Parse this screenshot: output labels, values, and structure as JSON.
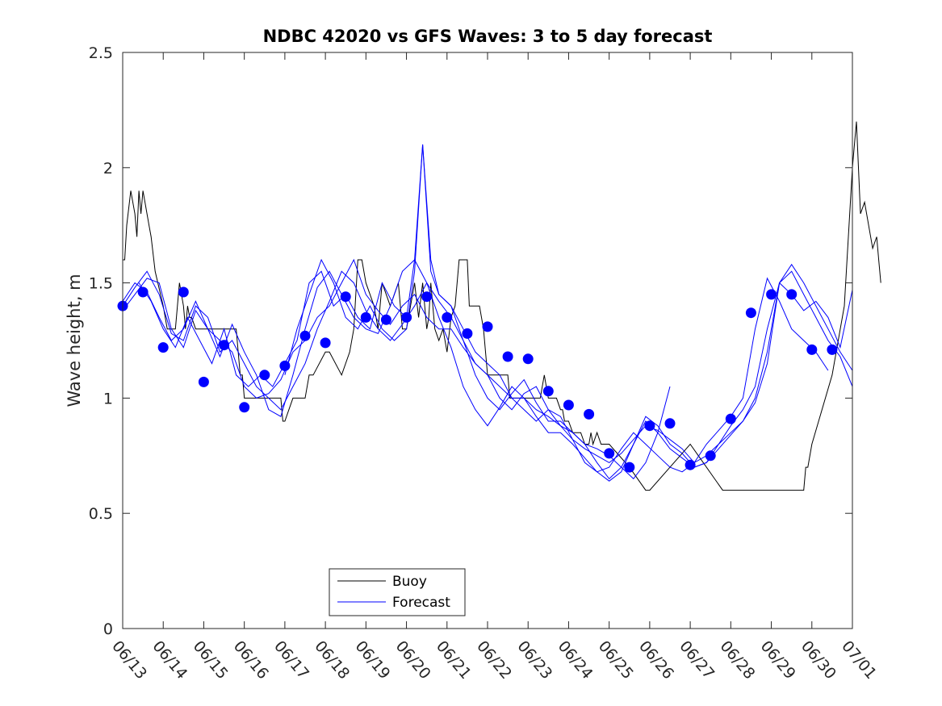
{
  "chart_data": {
    "type": "line",
    "title": "NDBC 42020 vs GFS Waves: 3 to 5 day forecast",
    "xlabel": "",
    "ylabel": "Wave height, m",
    "x_tick_labels": [
      "06/13",
      "06/14",
      "06/15",
      "06/16",
      "06/17",
      "06/18",
      "06/19",
      "06/20",
      "06/21",
      "06/22",
      "06/23",
      "06/24",
      "06/25",
      "06/26",
      "06/27",
      "06/28",
      "06/29",
      "06/30",
      "07/01"
    ],
    "xlim": [
      "06/13",
      "07/01"
    ],
    "ylim": [
      0,
      2.5
    ],
    "y_ticks": [
      0,
      0.5,
      1,
      1.5,
      2,
      2.5
    ],
    "y_tick_labels": [
      "0",
      "0.5",
      "1",
      "1.5",
      "2",
      "2.5"
    ],
    "grid": false,
    "legend": {
      "placement": "bottom-left",
      "entries": [
        "Buoy",
        "Forecast"
      ]
    },
    "colors": {
      "buoy": "#000000",
      "forecast": "#0000ff",
      "analysis_markers": "#0000ff"
    },
    "series": [
      {
        "name": "Buoy",
        "color": "#000000",
        "x": [
          0,
          0.05,
          0.1,
          0.2,
          0.3,
          0.35,
          0.4,
          0.45,
          0.5,
          0.55,
          0.6,
          0.65,
          0.7,
          0.8,
          1.0,
          1.1,
          1.3,
          1.4,
          1.5,
          1.55,
          1.6,
          1.65,
          1.7,
          1.8,
          1.9,
          2.0,
          2.5,
          2.8,
          2.9,
          2.95,
          3.0,
          3.3,
          3.5,
          3.9,
          3.95,
          4.0,
          4.2,
          4.5,
          4.6,
          4.7,
          5.0,
          5.1,
          5.4,
          5.6,
          5.7,
          5.8,
          5.9,
          6.0,
          6.1,
          6.2,
          6.3,
          6.4,
          6.6,
          6.8,
          6.85,
          6.9,
          7.0,
          7.1,
          7.2,
          7.3,
          7.4,
          7.5,
          7.55,
          7.6,
          7.7,
          7.8,
          7.9,
          8.0,
          8.1,
          8.2,
          8.3,
          8.5,
          8.55,
          8.6,
          8.8,
          8.9,
          9.0,
          9.5,
          9.55,
          9.9,
          10.0,
          10.2,
          10.3,
          10.4,
          10.5,
          10.6,
          10.7,
          10.8,
          10.85,
          10.9,
          11.0,
          11.1,
          11.2,
          11.3,
          11.4,
          11.5,
          11.55,
          11.6,
          11.7,
          11.8,
          11.85,
          12.0,
          12.5,
          12.9,
          12.95,
          13.0,
          13.5,
          14.0,
          14.2,
          14.8,
          15.8,
          16.3,
          16.8,
          16.85,
          16.9,
          17.0,
          17.5,
          17.8,
          17.9,
          18.0,
          18.05,
          18.1,
          18.2,
          18.3,
          18.4,
          18.5,
          18.6,
          18.65,
          18.7
        ],
        "y": [
          1.6,
          1.6,
          1.75,
          1.9,
          1.8,
          1.7,
          1.9,
          1.8,
          1.9,
          1.85,
          1.8,
          1.75,
          1.7,
          1.55,
          1.4,
          1.3,
          1.3,
          1.5,
          1.4,
          1.3,
          1.4,
          1.35,
          1.35,
          1.3,
          1.3,
          1.3,
          1.3,
          1.3,
          1.1,
          1.1,
          1.0,
          1.0,
          1.0,
          1.0,
          0.9,
          0.9,
          1.0,
          1.0,
          1.1,
          1.1,
          1.2,
          1.2,
          1.1,
          1.2,
          1.3,
          1.6,
          1.6,
          1.5,
          1.45,
          1.4,
          1.3,
          1.5,
          1.4,
          1.5,
          1.4,
          1.3,
          1.3,
          1.4,
          1.5,
          1.35,
          1.5,
          1.3,
          1.35,
          1.5,
          1.3,
          1.25,
          1.3,
          1.2,
          1.35,
          1.4,
          1.6,
          1.6,
          1.4,
          1.4,
          1.4,
          1.3,
          1.1,
          1.1,
          1.0,
          1.0,
          1.0,
          1.0,
          1.0,
          1.1,
          1.0,
          1.0,
          1.0,
          0.95,
          0.95,
          0.9,
          0.9,
          0.85,
          0.85,
          0.85,
          0.8,
          0.8,
          0.85,
          0.8,
          0.85,
          0.8,
          0.8,
          0.8,
          0.7,
          0.6,
          0.6,
          0.6,
          0.7,
          0.8,
          0.75,
          0.6,
          0.6,
          0.6,
          0.6,
          0.7,
          0.7,
          0.8,
          1.1,
          1.4,
          1.7,
          2.0,
          2.1,
          2.2,
          1.8,
          1.85,
          1.75,
          1.65,
          1.7,
          1.6,
          1.5
        ]
      },
      {
        "name": "",
        "color": "#0000ff",
        "x": [
          0,
          0.3,
          0.6,
          0.9,
          1.2,
          1.5,
          1.8,
          2.1,
          2.4,
          2.7,
          3.0,
          3.3,
          3.6,
          3.9,
          4.2,
          4.5,
          4.8,
          5.1,
          5.4,
          5.7,
          6.0,
          6.3,
          6.6,
          6.9,
          7.2,
          7.5,
          7.8,
          8.1,
          8.4,
          8.7,
          9.0,
          9.3,
          9.6,
          9.9,
          10.2,
          10.5,
          10.8,
          11.1,
          11.4,
          11.7,
          12.0,
          12.3,
          12.6,
          12.9,
          13.2,
          13.5,
          13.8,
          14.1,
          14.4,
          14.7,
          15.0,
          15.3,
          15.6,
          15.9,
          16.2,
          16.5,
          16.8,
          17.1,
          17.4,
          17.7,
          18.0
        ],
        "y": [
          1.38,
          1.45,
          1.52,
          1.5,
          1.3,
          1.22,
          1.38,
          1.3,
          1.25,
          1.2,
          1.05,
          1.0,
          1.02,
          1.08,
          1.2,
          1.25,
          1.35,
          1.4,
          1.5,
          1.6,
          1.45,
          1.38,
          1.32,
          1.4,
          1.45,
          1.35,
          1.3,
          1.3,
          1.22,
          1.15,
          1.1,
          1.05,
          1.0,
          1.0,
          0.95,
          0.92,
          0.88,
          0.82,
          0.78,
          0.75,
          0.72,
          0.76,
          0.82,
          0.88,
          0.86,
          0.82,
          0.78,
          0.72,
          0.75,
          0.8,
          0.85,
          0.9,
          1.0,
          1.2,
          1.5,
          1.58,
          1.5,
          1.4,
          1.3,
          1.2,
          1.12
        ]
      },
      {
        "name": "",
        "color": "#0000ff",
        "x": [
          0,
          0.3,
          0.6,
          0.9,
          1.2,
          1.5,
          1.8,
          2.1,
          2.4,
          2.7,
          3.0,
          3.3,
          3.6,
          3.9,
          4.2,
          4.5,
          4.8,
          5.1,
          5.4,
          5.7,
          6.0,
          6.3,
          6.6,
          6.9,
          7.2,
          7.5,
          7.8,
          8.1,
          8.4,
          8.7,
          9.0,
          9.3,
          9.6,
          9.9,
          10.2,
          10.5,
          10.8,
          11.1,
          11.4,
          11.7,
          12.0,
          12.3,
          12.6,
          12.9,
          13.2,
          13.5
        ],
        "y": [
          1.4,
          1.48,
          1.55,
          1.45,
          1.28,
          1.25,
          1.4,
          1.35,
          1.2,
          1.25,
          1.15,
          1.05,
          1.0,
          0.95,
          1.05,
          1.15,
          1.3,
          1.42,
          1.55,
          1.5,
          1.38,
          1.3,
          1.25,
          1.32,
          1.4,
          1.5,
          1.42,
          1.35,
          1.25,
          1.1,
          1.0,
          0.95,
          1.02,
          1.08,
          0.98,
          0.9,
          0.9,
          0.85,
          0.8,
          0.78,
          0.75,
          0.7,
          0.65,
          0.72,
          0.85,
          1.05
        ]
      },
      {
        "name": "",
        "color": "#0000ff",
        "x": [
          0,
          0.3,
          0.6,
          0.9,
          1.2,
          1.5,
          1.8,
          2.1,
          2.4,
          2.7,
          3.0,
          3.3,
          3.6,
          3.9,
          4.2,
          4.5,
          4.8,
          5.1,
          5.4,
          5.7,
          6.0,
          6.3,
          6.6,
          6.9,
          7.2,
          7.5,
          7.8,
          8.1,
          8.4,
          8.7,
          9.0,
          9.3,
          9.6,
          9.9,
          10.2,
          10.5,
          10.8,
          11.1,
          11.4,
          11.7,
          12.0,
          12.3,
          12.6,
          12.9,
          13.2,
          13.5,
          13.8,
          14.1,
          14.4,
          14.7,
          15.0,
          15.3,
          15.6,
          15.9,
          16.2,
          16.5,
          16.8,
          17.1,
          17.4,
          17.7,
          18.0
        ],
        "y": [
          1.42,
          1.5,
          1.46,
          1.35,
          1.25,
          1.3,
          1.42,
          1.3,
          1.18,
          1.32,
          1.2,
          1.1,
          0.95,
          0.92,
          1.1,
          1.3,
          1.48,
          1.55,
          1.45,
          1.35,
          1.3,
          1.28,
          1.4,
          1.55,
          1.6,
          1.5,
          1.35,
          1.22,
          1.05,
          0.95,
          0.88,
          0.96,
          1.05,
          1.0,
          0.92,
          0.85,
          0.85,
          0.8,
          0.74,
          0.68,
          0.64,
          0.68,
          0.8,
          0.92,
          0.88,
          0.8,
          0.76,
          0.7,
          0.72,
          0.78,
          0.84,
          0.9,
          0.98,
          1.15,
          1.5,
          1.55,
          1.45,
          1.35,
          1.25,
          1.18,
          1.05
        ]
      },
      {
        "name": "",
        "color": "#0000ff",
        "x": [
          0.4,
          0.7,
          1.0,
          1.3,
          1.6,
          1.9,
          2.2,
          2.5,
          2.8,
          3.1,
          3.4,
          3.7,
          4.0,
          4.3,
          4.6,
          4.9,
          5.2,
          5.5,
          5.8,
          6.1,
          6.4,
          6.7,
          7.0,
          7.2,
          7.4,
          7.6,
          7.8,
          8.1,
          8.4,
          8.7,
          9.0,
          9.3,
          9.6,
          9.9,
          10.2,
          10.5,
          10.8,
          11.1,
          11.4,
          11.7,
          12.0,
          12.3,
          12.6,
          12.9,
          13.2,
          13.5,
          13.8,
          14.1,
          14.4,
          14.7,
          15.0,
          15.3,
          15.6,
          15.9,
          16.2,
          16.5,
          16.8,
          17.1,
          17.4
        ],
        "y": [
          1.5,
          1.42,
          1.3,
          1.22,
          1.35,
          1.25,
          1.15,
          1.3,
          1.1,
          1.05,
          1.1,
          1.05,
          1.15,
          1.25,
          1.5,
          1.55,
          1.4,
          1.45,
          1.35,
          1.3,
          1.5,
          1.4,
          1.35,
          1.6,
          2.1,
          1.55,
          1.45,
          1.4,
          1.3,
          1.2,
          1.15,
          1.1,
          1.0,
          0.95,
          0.9,
          0.95,
          0.92,
          0.82,
          0.72,
          0.68,
          0.7,
          0.78,
          0.85,
          0.8,
          0.75,
          0.7,
          0.68,
          0.72,
          0.8,
          0.86,
          0.92,
          1.0,
          1.3,
          1.52,
          1.42,
          1.3,
          1.25,
          1.2,
          1.12
        ]
      },
      {
        "name": "",
        "color": "#0000ff",
        "x": [
          4.0,
          4.3,
          4.6,
          4.9,
          5.2,
          5.5,
          5.8,
          6.1,
          6.4,
          6.7,
          7.0,
          7.2,
          7.4,
          7.6,
          7.8,
          8.1,
          8.4,
          8.7,
          9.0,
          9.3,
          9.6,
          9.9,
          10.2,
          10.5,
          10.8,
          11.1,
          11.4,
          11.7,
          12.0,
          12.3,
          12.6,
          12.9,
          13.2,
          13.5,
          13.8,
          14.1,
          14.4,
          14.7,
          15.0,
          15.3,
          15.6,
          15.9,
          16.2,
          16.5,
          16.8,
          17.1,
          17.4,
          17.7,
          18.0
        ],
        "y": [
          1.1,
          1.3,
          1.45,
          1.6,
          1.5,
          1.35,
          1.3,
          1.4,
          1.3,
          1.25,
          1.3,
          1.55,
          2.1,
          1.6,
          1.45,
          1.4,
          1.25,
          1.15,
          1.1,
          1.0,
          0.95,
          1.02,
          1.05,
          0.95,
          0.88,
          0.85,
          0.8,
          0.72,
          0.65,
          0.7,
          0.8,
          0.9,
          0.85,
          0.78,
          0.74,
          0.7,
          0.72,
          0.8,
          0.88,
          0.95,
          1.05,
          1.3,
          1.5,
          1.45,
          1.38,
          1.42,
          1.35,
          1.22,
          1.47
        ]
      }
    ],
    "markers": {
      "name": "",
      "color": "#0000ff",
      "x": [
        0,
        0.5,
        1.0,
        1.5,
        2.0,
        2.5,
        3.0,
        3.5,
        4.0,
        4.5,
        5.0,
        5.5,
        6.0,
        6.5,
        7.0,
        7.5,
        8.0,
        8.5,
        9.0,
        9.5,
        10.0,
        10.5,
        11.0,
        11.5,
        12.0,
        12.5,
        13.0,
        13.5,
        14.0,
        14.5,
        15.0,
        15.5,
        16.0,
        16.5,
        17.0,
        17.5
      ],
      "y": [
        1.4,
        1.46,
        1.22,
        1.46,
        1.07,
        1.23,
        0.96,
        1.1,
        1.14,
        1.27,
        1.24,
        1.44,
        1.35,
        1.34,
        1.35,
        1.44,
        1.35,
        1.28,
        1.31,
        1.18,
        1.17,
        1.03,
        0.97,
        0.93,
        0.76,
        0.7,
        0.88,
        0.89,
        0.71,
        0.75,
        0.91,
        1.37,
        1.45,
        1.45,
        1.21,
        1.21
      ]
    }
  }
}
